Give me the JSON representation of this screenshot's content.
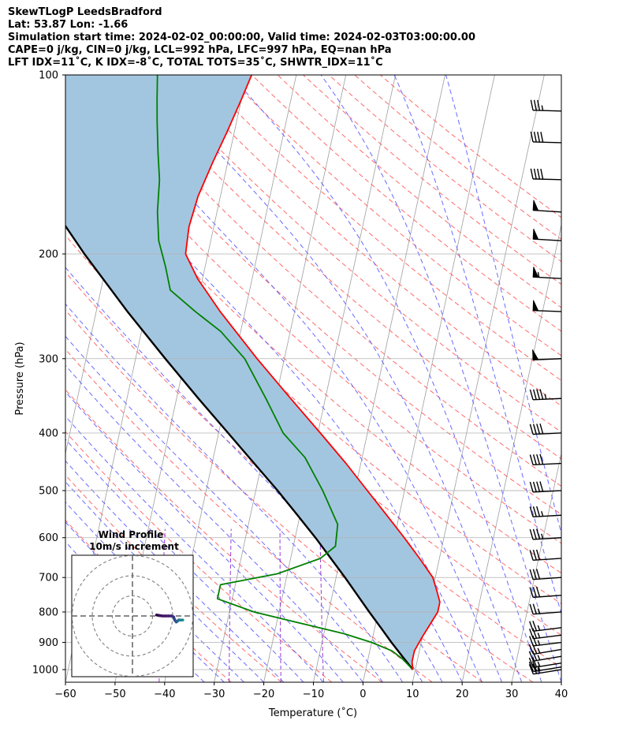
{
  "header": {
    "line1": "SkewTLogP LeedsBradford",
    "line2": "Lat: 53.87   Lon: -1.66",
    "line3": "Simulation start time: 2024-02-02_00:00:00, Valid time: 2024-02-03T03:00:00.00",
    "line4": "CAPE=0 j/kg, CIN=0 j/kg, LCL=992 hPa, LFC=997 hPa, EQ=nan hPa",
    "line5": "LFT IDX=11˚C, K IDX=-8˚C, TOTAL TOTS=35˚C, SHWTR_IDX=11˚C"
  },
  "chart_data": {
    "type": "line",
    "chart_kind": "skew-T log-P",
    "xlabel": "Temperature (˚C)",
    "ylabel": "Pressure (hPa)",
    "xlim": [
      -60,
      40
    ],
    "ylim": [
      1050,
      100
    ],
    "y_scale": "log",
    "x_ticks": [
      -60,
      -50,
      -40,
      -30,
      -20,
      -10,
      0,
      10,
      20,
      30,
      40
    ],
    "x_tick_labels": [
      "−60",
      "−50",
      "−40",
      "−30",
      "−20",
      "−10",
      "0",
      "10",
      "20",
      "30",
      "40"
    ],
    "y_ticks": [
      1000,
      900,
      800,
      700,
      600,
      500,
      400,
      300,
      200,
      100
    ],
    "y_tick_labels": [
      "1000",
      "900",
      "800",
      "700",
      "600",
      "500",
      "400",
      "300",
      "200",
      "100"
    ],
    "grid": true,
    "background_lines": {
      "isotherms": "gray solid",
      "dry_adiabats": "red dashed",
      "moist_adiabats": "blue dashed",
      "mixing_ratio": "purple dashed"
    },
    "series": [
      {
        "role": "temperature",
        "color": "#ff0000",
        "points": [
          {
            "p": 1000,
            "t": 9.5
          },
          {
            "p": 970,
            "t": 9.0
          },
          {
            "p": 930,
            "t": 9.0
          },
          {
            "p": 880,
            "t": 10.0
          },
          {
            "p": 840,
            "t": 11.0
          },
          {
            "p": 800,
            "t": 12.0
          },
          {
            "p": 770,
            "t": 12.0
          },
          {
            "p": 740,
            "t": 11.0
          },
          {
            "p": 700,
            "t": 9.5
          },
          {
            "p": 650,
            "t": 6.0
          },
          {
            "p": 600,
            "t": 2.0
          },
          {
            "p": 550,
            "t": -2.5
          },
          {
            "p": 500,
            "t": -7.5
          },
          {
            "p": 450,
            "t": -13.0
          },
          {
            "p": 400,
            "t": -19.5
          },
          {
            "p": 350,
            "t": -27.0
          },
          {
            "p": 300,
            "t": -35.5
          },
          {
            "p": 250,
            "t": -45.0
          },
          {
            "p": 220,
            "t": -51.0
          },
          {
            "p": 200,
            "t": -54.5
          },
          {
            "p": 180,
            "t": -55.0
          },
          {
            "p": 160,
            "t": -54.5
          },
          {
            "p": 140,
            "t": -53.0
          },
          {
            "p": 125,
            "t": -51.5
          },
          {
            "p": 110,
            "t": -50.0
          },
          {
            "p": 100,
            "t": -49.0
          }
        ]
      },
      {
        "role": "dewpoint",
        "color": "#008000",
        "points": [
          {
            "p": 1000,
            "t": 9.5
          },
          {
            "p": 960,
            "t": 7.0
          },
          {
            "p": 930,
            "t": 4.5
          },
          {
            "p": 900,
            "t": 0.0
          },
          {
            "p": 870,
            "t": -6.0
          },
          {
            "p": 840,
            "t": -14.0
          },
          {
            "p": 800,
            "t": -25.0
          },
          {
            "p": 760,
            "t": -33.0
          },
          {
            "p": 720,
            "t": -33.0
          },
          {
            "p": 690,
            "t": -22.0
          },
          {
            "p": 650,
            "t": -14.0
          },
          {
            "p": 620,
            "t": -11.5
          },
          {
            "p": 570,
            "t": -12.0
          },
          {
            "p": 500,
            "t": -16.5
          },
          {
            "p": 440,
            "t": -21.5
          },
          {
            "p": 400,
            "t": -27.0
          },
          {
            "p": 350,
            "t": -32.0
          },
          {
            "p": 300,
            "t": -38.0
          },
          {
            "p": 270,
            "t": -44.0
          },
          {
            "p": 250,
            "t": -50.0
          },
          {
            "p": 230,
            "t": -56.0
          },
          {
            "p": 210,
            "t": -58.0
          },
          {
            "p": 190,
            "t": -60.5
          },
          {
            "p": 170,
            "t": -62.0
          },
          {
            "p": 150,
            "t": -63.0
          },
          {
            "p": 135,
            "t": -64.5
          },
          {
            "p": 120,
            "t": -66.0
          },
          {
            "p": 110,
            "t": -67.0
          },
          {
            "p": 100,
            "t": -68.0
          }
        ]
      },
      {
        "role": "parcel_path",
        "color": "#000000",
        "points": [
          {
            "p": 1000,
            "t": 9.5
          },
          {
            "p": 950,
            "t": 6.8
          },
          {
            "p": 900,
            "t": 4.0
          },
          {
            "p": 850,
            "t": 1.2
          },
          {
            "p": 800,
            "t": -1.8
          },
          {
            "p": 750,
            "t": -4.9
          },
          {
            "p": 700,
            "t": -8.2
          },
          {
            "p": 650,
            "t": -11.9
          },
          {
            "p": 600,
            "t": -15.9
          },
          {
            "p": 550,
            "t": -20.5
          },
          {
            "p": 500,
            "t": -25.6
          },
          {
            "p": 450,
            "t": -31.5
          },
          {
            "p": 400,
            "t": -38.1
          },
          {
            "p": 350,
            "t": -45.6
          },
          {
            "p": 300,
            "t": -54.0
          },
          {
            "p": 250,
            "t": -63.7
          },
          {
            "p": 200,
            "t": -74.9
          },
          {
            "p": 170,
            "t": -82.5
          },
          {
            "p": 150,
            "t": -88.2
          },
          {
            "p": 125,
            "t": -96.4
          },
          {
            "p": 100,
            "t": -106.0
          }
        ]
      }
    ],
    "shading": "area between temperature and parcel path, light blue",
    "wind_barbs": [
      {
        "p": 1000,
        "u": -25,
        "v": -4
      },
      {
        "p": 990,
        "u": -25,
        "v": -4
      },
      {
        "p": 975,
        "u": -25,
        "v": -4
      },
      {
        "p": 950,
        "u": -24,
        "v": -4
      },
      {
        "p": 925,
        "u": -24,
        "v": -4
      },
      {
        "p": 900,
        "u": -24,
        "v": -3
      },
      {
        "p": 875,
        "u": -24,
        "v": -3
      },
      {
        "p": 850,
        "u": -24,
        "v": -3
      },
      {
        "p": 800,
        "u": -26,
        "v": -2
      },
      {
        "p": 750,
        "u": -28,
        "v": -2
      },
      {
        "p": 700,
        "u": -29,
        "v": -2
      },
      {
        "p": 650,
        "u": -31,
        "v": -2
      },
      {
        "p": 600,
        "u": -33,
        "v": -2
      },
      {
        "p": 550,
        "u": -35,
        "v": -2
      },
      {
        "p": 500,
        "u": -38,
        "v": -2
      },
      {
        "p": 450,
        "u": -40,
        "v": -2
      },
      {
        "p": 400,
        "u": -42,
        "v": -2
      },
      {
        "p": 350,
        "u": -45,
        "v": -2
      },
      {
        "p": 300,
        "u": -48,
        "v": -2
      },
      {
        "p": 250,
        "u": -52,
        "v": 2
      },
      {
        "p": 220,
        "u": -55,
        "v": 3
      },
      {
        "p": 190,
        "u": -52,
        "v": 3
      },
      {
        "p": 170,
        "u": -50,
        "v": 3
      },
      {
        "p": 150,
        "u": -40,
        "v": 1
      },
      {
        "p": 130,
        "u": -38,
        "v": 1
      },
      {
        "p": 115,
        "u": -36,
        "v": 1
      }
    ],
    "hodograph": {
      "title": "Wind Profile",
      "subtitle": "10m/s increment",
      "rings": [
        10,
        20,
        30
      ],
      "points": [
        {
          "u": 12,
          "v": 0.5
        },
        {
          "u": 13.5,
          "v": 0.2
        },
        {
          "u": 15,
          "v": 0
        },
        {
          "u": 16.5,
          "v": 0
        },
        {
          "u": 18,
          "v": 0
        },
        {
          "u": 19.5,
          "v": 0
        },
        {
          "u": 20.5,
          "v": -0.5
        },
        {
          "u": 21,
          "v": -2
        },
        {
          "u": 21.8,
          "v": -3
        },
        {
          "u": 22.5,
          "v": -2.5
        },
        {
          "u": 23,
          "v": -2
        },
        {
          "u": 24,
          "v": -2
        },
        {
          "u": 25,
          "v": -2
        }
      ]
    }
  }
}
